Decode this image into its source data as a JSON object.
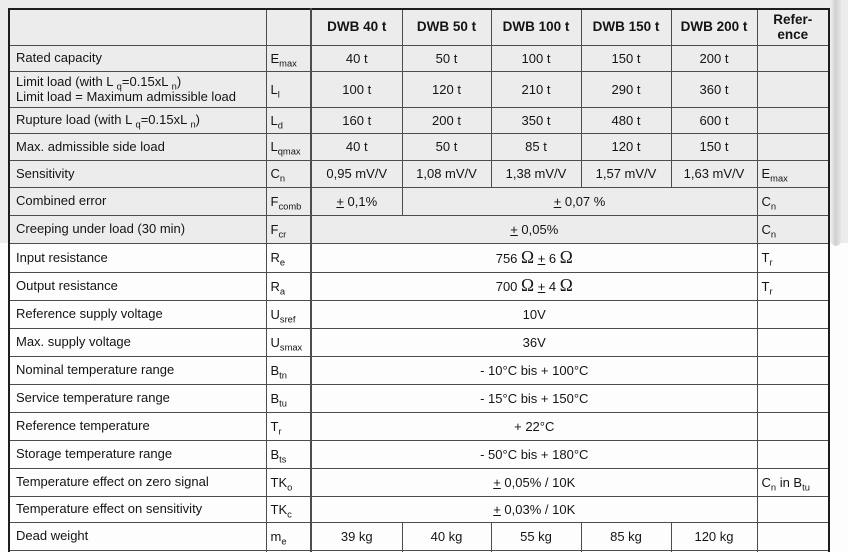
{
  "colors": {
    "band": "#ececec",
    "inner_border": "#4d4d4d",
    "outer_border": "#1d1d1d",
    "text": "#141414"
  },
  "table": {
    "header": {
      "param_header": "",
      "symbol_header": "",
      "models": [
        "DWB 40 t",
        "DWB 50 t",
        "DWB 100 t",
        "DWB 150 t",
        "DWB 200 t"
      ],
      "reference_header": "Refer-\nence"
    },
    "rows": [
      {
        "param": "Rated capacity",
        "symbol": "E~max~",
        "cells": [
          {
            "text": "40 t"
          },
          {
            "text": "50 t"
          },
          {
            "text": "100 t"
          },
          {
            "text": "150 t"
          },
          {
            "text": "200 t"
          }
        ],
        "reference": ""
      },
      {
        "param": "Limit load (with L ~q~=0.15xL ~n~)\nLimit load = Maximum admissible load",
        "symbol": "L~l~",
        "cells": [
          {
            "text": "100 t"
          },
          {
            "text": "120 t"
          },
          {
            "text": "210 t"
          },
          {
            "text": "290 t"
          },
          {
            "text": "360 t"
          }
        ],
        "reference": ""
      },
      {
        "param": "Rupture load (with L ~q~=0.15xL ~n~)",
        "symbol": "L~d~",
        "cells": [
          {
            "text": "160 t"
          },
          {
            "text": "200 t"
          },
          {
            "text": "350 t"
          },
          {
            "text": "480 t"
          },
          {
            "text": "600 t"
          }
        ],
        "reference": ""
      },
      {
        "param": "Max. admissible side load",
        "symbol": "L~qmax~",
        "cells": [
          {
            "text": "40 t"
          },
          {
            "text": "50 t"
          },
          {
            "text": "85 t"
          },
          {
            "text": "120 t"
          },
          {
            "text": "150 t"
          }
        ],
        "reference": ""
      },
      {
        "param": "Sensitivity",
        "symbol": "C~n~",
        "cells": [
          {
            "text": "0,95 mV/V"
          },
          {
            "text": "1,08 mV/V"
          },
          {
            "text": "1,38 mV/V"
          },
          {
            "text": "1,57 mV/V"
          },
          {
            "text": "1,63 mV/V"
          }
        ],
        "reference": "E~max~"
      },
      {
        "param": "Combined error",
        "symbol": "F~comb~",
        "cells": [
          {
            "text": "± 0,1%"
          },
          {
            "text": "± 0,07 %",
            "span": 4
          }
        ],
        "reference": "C~n~"
      },
      {
        "param": "Creeping under load (30 min)",
        "symbol": "F~cr~",
        "cells": [
          {
            "text": "± 0,05%",
            "span": 5
          }
        ],
        "reference": "C~n~"
      },
      {
        "param": "Input resistance",
        "symbol": "R~e~",
        "cells": [
          {
            "text": "756 Ω ± 6 Ω",
            "span": 5
          }
        ],
        "reference": "T~r~"
      },
      {
        "param": "Output resistance",
        "symbol": "R~a~",
        "cells": [
          {
            "text": "700 Ω ± 4 Ω",
            "span": 5
          }
        ],
        "reference": "T~r~"
      },
      {
        "param": "Reference supply voltage",
        "symbol": "U~sref~",
        "cells": [
          {
            "text": "10V",
            "span": 5
          }
        ],
        "reference": ""
      },
      {
        "param": "Max. supply voltage",
        "symbol": "U~smax~",
        "cells": [
          {
            "text": "36V",
            "span": 5
          }
        ],
        "reference": ""
      },
      {
        "param": "Nominal temperature range",
        "symbol": "B~tn~",
        "cells": [
          {
            "text": "- 10°C bis + 100°C",
            "span": 5
          }
        ],
        "reference": ""
      },
      {
        "param": "Service temperature range",
        "symbol": "B~tu~",
        "cells": [
          {
            "text": "- 15°C bis + 150°C",
            "span": 5
          }
        ],
        "reference": ""
      },
      {
        "param": "Reference temperature",
        "symbol": "T~r~",
        "cells": [
          {
            "text": "+ 22°C",
            "span": 5
          }
        ],
        "reference": ""
      },
      {
        "param": "Storage temperature range",
        "symbol": "B~ts~",
        "cells": [
          {
            "text": "- 50°C bis + 180°C",
            "span": 5
          }
        ],
        "reference": ""
      },
      {
        "param": "Temperature effect on zero signal",
        "symbol": "TK~o~",
        "cells": [
          {
            "text": "± 0,05% / 10K",
            "span": 5
          }
        ],
        "reference": "C~n~ in B~tu~"
      },
      {
        "param": "Temperature effect on sensitivity",
        "symbol": "TK~c~",
        "cells": [
          {
            "text": "± 0,03% / 10K",
            "span": 5
          }
        ],
        "reference": ""
      },
      {
        "param": "Dead weight",
        "symbol": "m~e~",
        "cells": [
          {
            "text": "39 kg"
          },
          {
            "text": "40 kg"
          },
          {
            "text": "55 kg"
          },
          {
            "text": "85 kg"
          },
          {
            "text": "120 kg"
          }
        ],
        "reference": ""
      }
    ]
  }
}
